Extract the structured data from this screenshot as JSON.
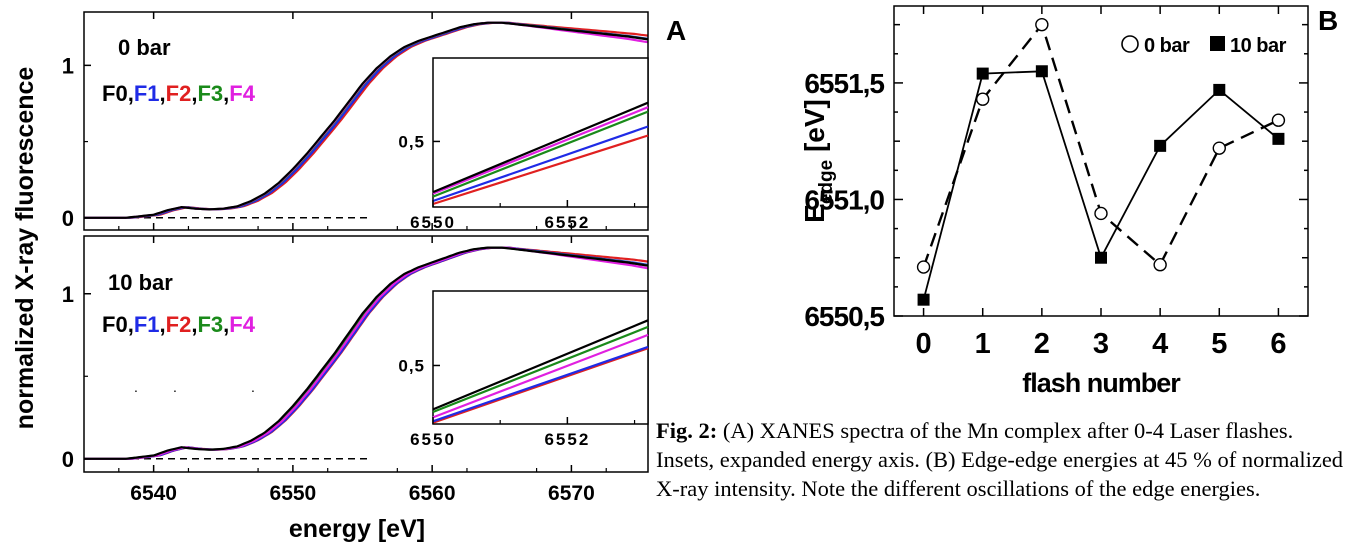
{
  "figure": {
    "label_a": "A",
    "label_b": "B",
    "shared_ylabel": "normalized X-ray fluorescence",
    "shared_xlabel": "energy [eV]"
  },
  "caption": {
    "prefix": "Fig. 2:",
    "text": " (A) XANES spectra of the Mn complex after 0-4 Laser flashes. Insets, expanded energy axis. (B) Edge-edge energies at 45 % of normalized X-ray intensity. Note the different oscillations of the edge energies."
  },
  "colors": {
    "F0": "#000000",
    "F1": "#1f2be6",
    "F2": "#e02020",
    "F3": "#1a8a1a",
    "F4": "#e020e0"
  },
  "chart_data": [
    {
      "id": "A-top",
      "type": "line",
      "title": "0 bar",
      "legend": [
        "F0",
        "F1",
        "F2",
        "F3",
        "F4"
      ],
      "xlim": [
        6535,
        6575.5
      ],
      "ylim": [
        -0.08,
        1.35
      ],
      "xticks": [
        6540,
        6550,
        6560,
        6570
      ],
      "yticks": [
        {
          "v": 0,
          "label": "0"
        },
        {
          "v": 1,
          "label": "1"
        }
      ],
      "baseline": {
        "y": 0,
        "x": [
          6535,
          6555.5
        ],
        "style": "dashed"
      },
      "series": [
        {
          "name": "F0",
          "shift": 0.0,
          "x": [
            6535,
            6538,
            6540,
            6541,
            6542,
            6543,
            6544,
            6545,
            6546,
            6547,
            6548,
            6549,
            6550,
            6551,
            6552,
            6553,
            6554,
            6555,
            6556,
            6557,
            6558,
            6559,
            6560,
            6561,
            6562,
            6563,
            6564,
            6565,
            6566,
            6567,
            6568,
            6569,
            6570,
            6571,
            6572,
            6573,
            6574,
            6575.5
          ],
          "y": [
            0.0,
            0.0,
            0.02,
            0.05,
            0.07,
            0.06,
            0.055,
            0.06,
            0.075,
            0.11,
            0.16,
            0.23,
            0.32,
            0.42,
            0.53,
            0.64,
            0.76,
            0.88,
            0.98,
            1.06,
            1.12,
            1.16,
            1.19,
            1.22,
            1.25,
            1.27,
            1.28,
            1.28,
            1.27,
            1.26,
            1.25,
            1.24,
            1.23,
            1.22,
            1.21,
            1.2,
            1.19,
            1.17
          ]
        },
        {
          "name": "F1",
          "shift": 0.3
        },
        {
          "name": "F2",
          "shift": 0.45
        },
        {
          "name": "F3",
          "shift": 0.1
        },
        {
          "name": "F4",
          "shift": 0.05
        }
      ],
      "inset": {
        "xlim": [
          6550,
          6553.2
        ],
        "ylim": [
          0.28,
          0.78
        ],
        "xticks": [
          {
            "v": 6550,
            "label": "6550"
          },
          {
            "v": 6552,
            "label": "6552"
          }
        ],
        "yticks": [
          {
            "v": 0.5,
            "label": "0,5"
          }
        ],
        "series": [
          {
            "name": "F0",
            "x": [
              6550,
              6553.2
            ],
            "y": [
              0.33,
              0.63
            ]
          },
          {
            "name": "F4",
            "x": [
              6550,
              6553.2
            ],
            "y": [
              0.325,
              0.615
            ]
          },
          {
            "name": "F3",
            "x": [
              6550,
              6553.2
            ],
            "y": [
              0.315,
              0.6
            ]
          },
          {
            "name": "F1",
            "x": [
              6550,
              6553.2
            ],
            "y": [
              0.3,
              0.55
            ]
          },
          {
            "name": "F2",
            "x": [
              6550,
              6553.2
            ],
            "y": [
              0.29,
              0.52
            ]
          }
        ]
      }
    },
    {
      "id": "A-bottom",
      "type": "line",
      "title": "10 bar",
      "legend": [
        "F0",
        "F1",
        "F2",
        "F3",
        "F4"
      ],
      "xlim": [
        6535,
        6575.5
      ],
      "ylim": [
        -0.08,
        1.35
      ],
      "xticks": [
        6540,
        6550,
        6560,
        6570
      ],
      "yticks": [
        {
          "v": 0,
          "label": "0"
        },
        {
          "v": 1,
          "label": "1"
        }
      ],
      "baseline": {
        "y": 0,
        "x": [
          6535,
          6555.5
        ],
        "style": "dashed"
      },
      "series": [
        {
          "name": "F0",
          "shift": 0.0
        },
        {
          "name": "F1",
          "shift": 0.4
        },
        {
          "name": "F2",
          "shift": 0.45
        },
        {
          "name": "F3",
          "shift": 0.1
        },
        {
          "name": "F4",
          "shift": 0.25
        }
      ],
      "inset": {
        "xlim": [
          6550,
          6553.2
        ],
        "ylim": [
          0.28,
          0.78
        ],
        "xticks": [
          {
            "v": 6550,
            "label": "6550"
          },
          {
            "v": 6552,
            "label": "6552"
          }
        ],
        "yticks": [
          {
            "v": 0.5,
            "label": "0,5"
          }
        ],
        "series": [
          {
            "name": "F0",
            "x": [
              6550,
              6553.2
            ],
            "y": [
              0.335,
              0.67
            ]
          },
          {
            "name": "F3",
            "x": [
              6550,
              6553.2
            ],
            "y": [
              0.325,
              0.645
            ]
          },
          {
            "name": "F4",
            "x": [
              6550,
              6553.2
            ],
            "y": [
              0.305,
              0.615
            ]
          },
          {
            "name": "F1",
            "x": [
              6550,
              6553.2
            ],
            "y": [
              0.29,
              0.57
            ]
          },
          {
            "name": "F2",
            "x": [
              6550,
              6553.2
            ],
            "y": [
              0.285,
              0.565
            ]
          }
        ]
      }
    },
    {
      "id": "B",
      "type": "line",
      "xlabel": "flash number",
      "ylabel": "E",
      "ylabel_sub": "edge",
      "ylabel_unit": " [eV]",
      "xlim": [
        -0.5,
        6.5
      ],
      "ylim": [
        6550.5,
        6551.83
      ],
      "xticks": [
        0,
        1,
        2,
        3,
        4,
        5,
        6
      ],
      "yticks": [
        {
          "v": 6550.5,
          "label": "6550,5"
        },
        {
          "v": 6551.0,
          "label": "6551,0"
        },
        {
          "v": 6551.5,
          "label": "6551,5"
        }
      ],
      "legend_position": "top-right",
      "series": [
        {
          "name": "0 bar",
          "marker": "open-circle",
          "line": "dashed",
          "x": [
            0,
            1,
            2,
            3,
            4,
            5,
            6
          ],
          "y": [
            6550.71,
            6551.43,
            6551.75,
            6550.94,
            6550.72,
            6551.22,
            6551.34
          ]
        },
        {
          "name": "10 bar",
          "marker": "filled-square",
          "line": "solid",
          "x": [
            0,
            1,
            2,
            3,
            4,
            5,
            6
          ],
          "y": [
            6550.57,
            6551.54,
            6551.55,
            6550.75,
            6551.23,
            6551.47,
            6551.26
          ]
        }
      ]
    }
  ]
}
